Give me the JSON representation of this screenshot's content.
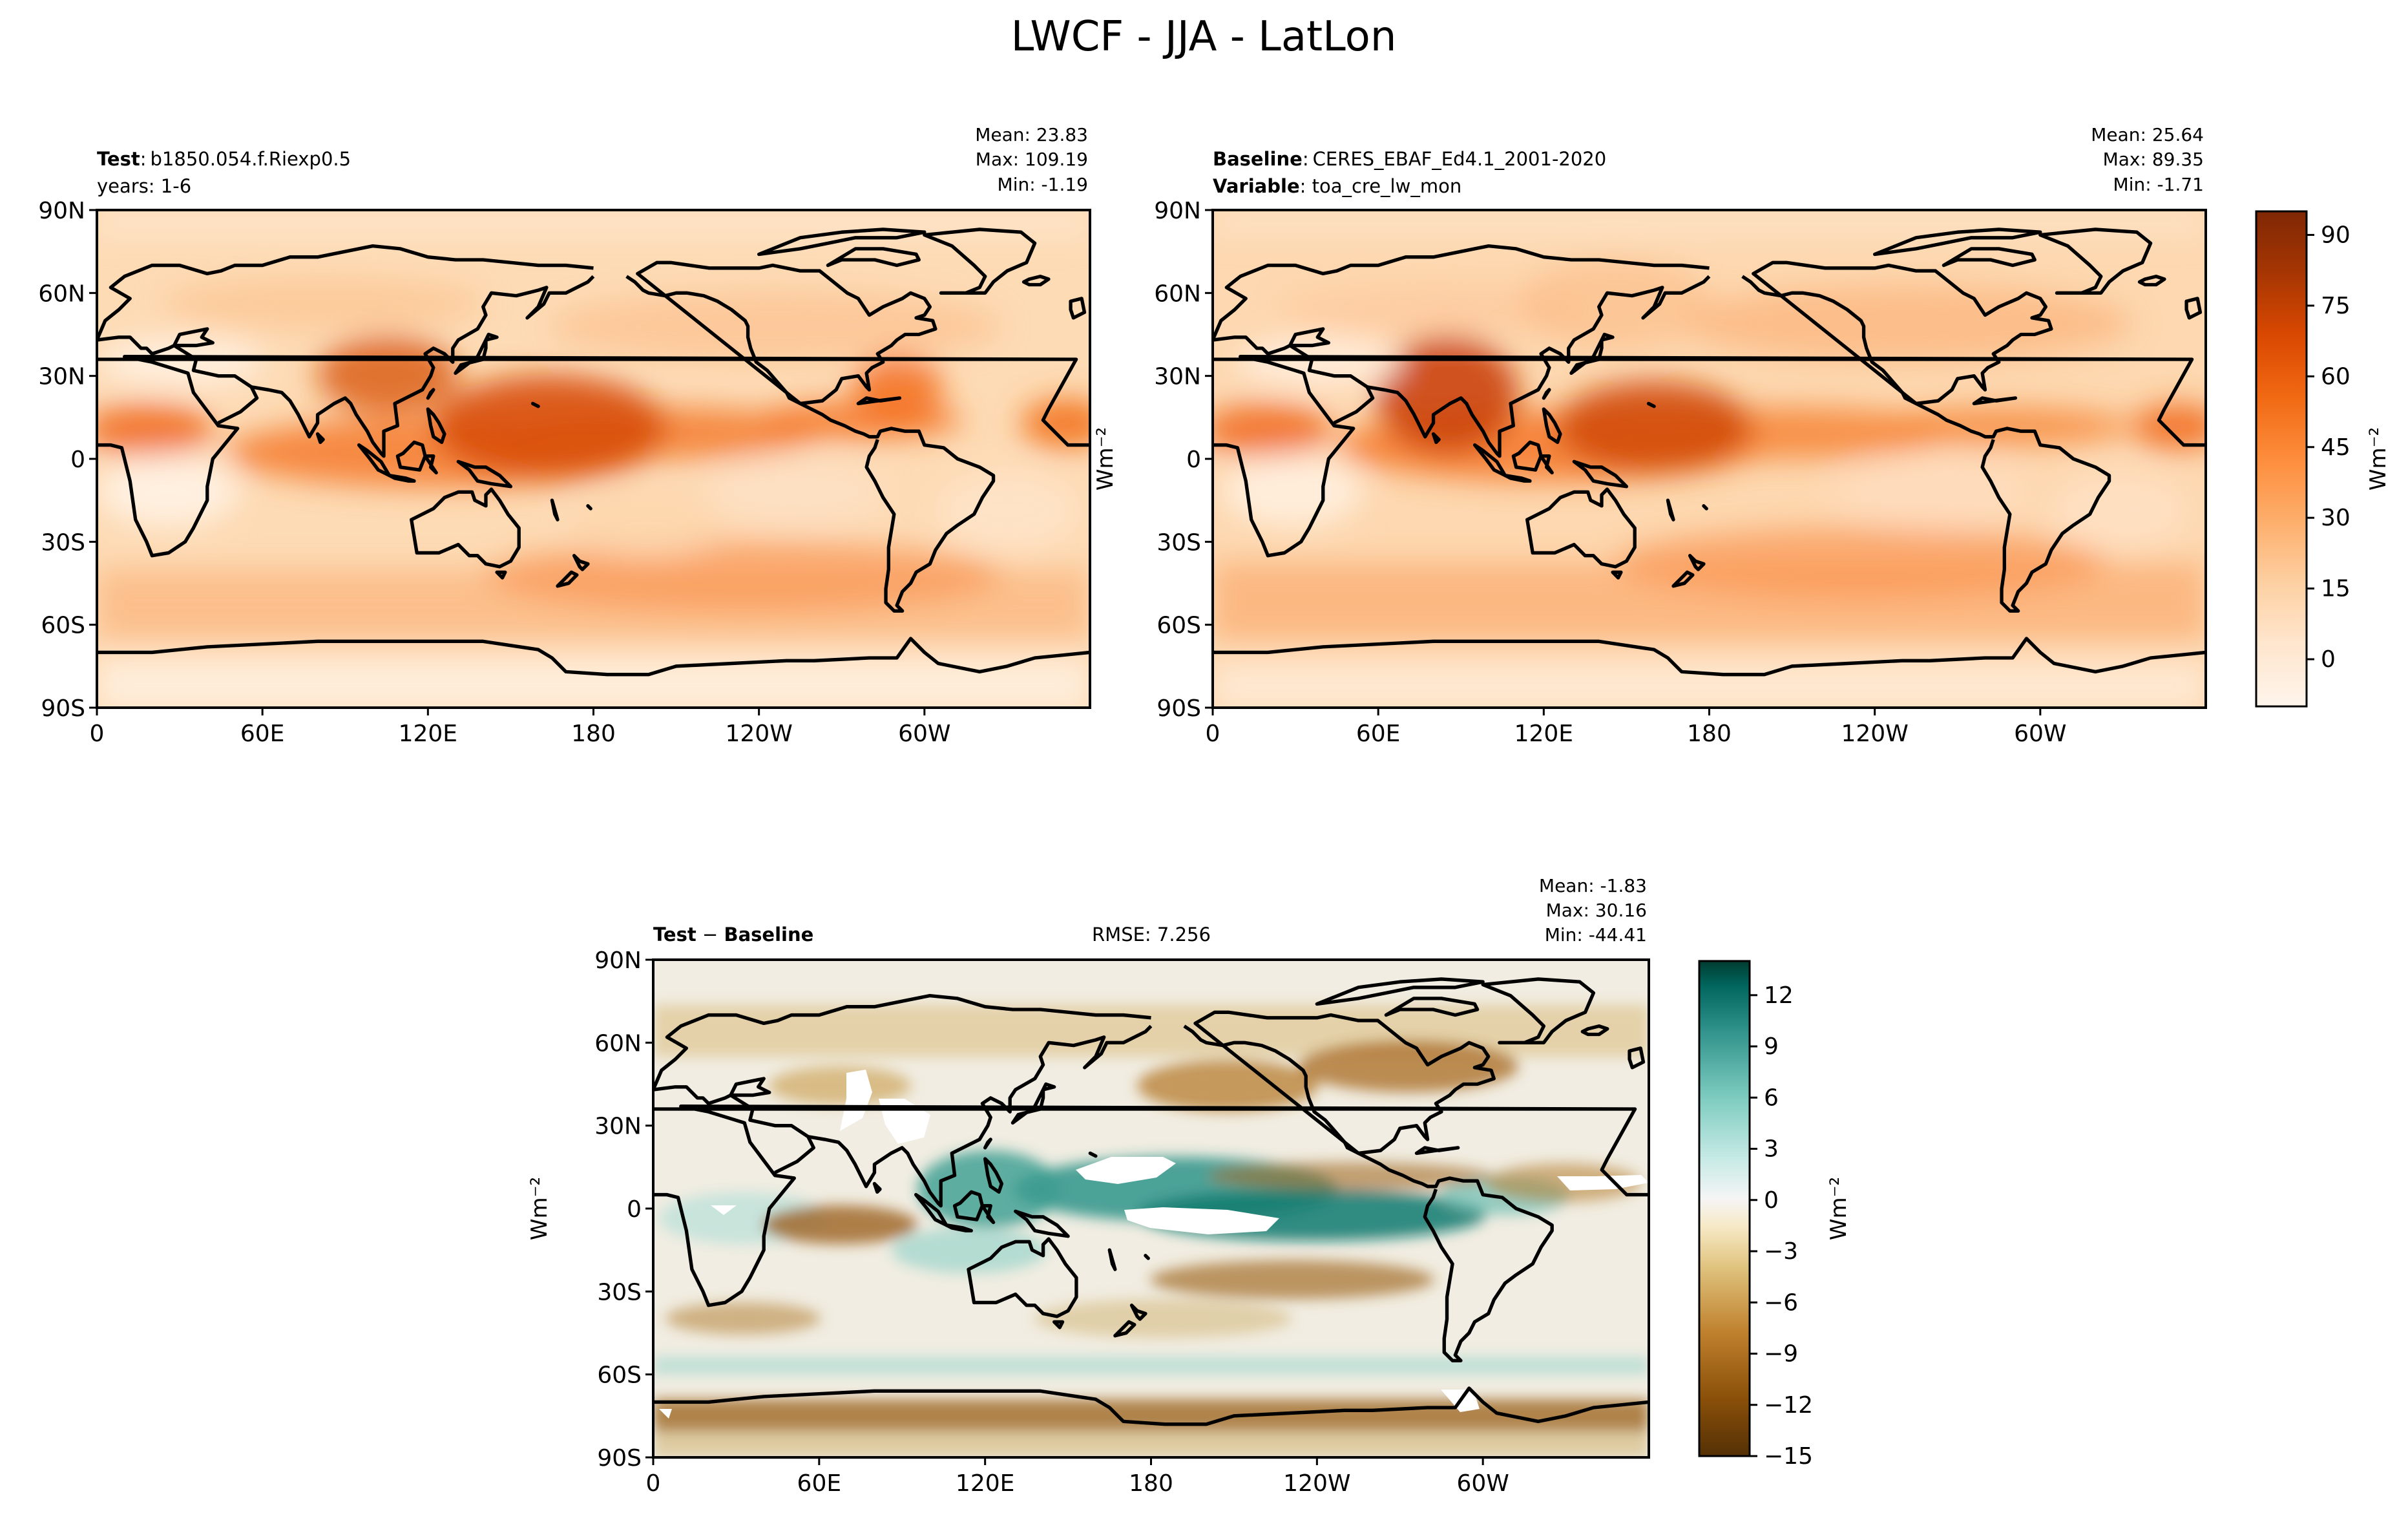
{
  "figure_title": "LWCF - JJA - LatLon",
  "chart_data": [
    {
      "type": "heatmap",
      "id": "test",
      "label_bold": "Test",
      "label_sep": ":",
      "label_text": "b1850.054.f.Riexp0.5",
      "line2_bold": "",
      "line2_text": "years: 1-6",
      "stats": {
        "mean": "Mean: 23.83",
        "max": "Max: 109.19",
        "min": "Min: -1.19"
      },
      "xticks": [
        "0",
        "60E",
        "120E",
        "180",
        "120W",
        "60W"
      ],
      "yticks": [
        "90N",
        "60N",
        "30N",
        "0",
        "30S",
        "60S",
        "90S"
      ],
      "x_values": [
        0,
        60,
        120,
        180,
        240,
        300
      ],
      "xlim": [
        0,
        360
      ],
      "ylim": [
        -90,
        90
      ],
      "units": "Wm⁻²",
      "colormap": "Oranges"
    },
    {
      "type": "heatmap",
      "id": "base",
      "label_bold": "Baseline",
      "label_sep": ":",
      "label_text": "CERES_EBAF_Ed4.1_2001-2020",
      "line2_bold": "Variable",
      "line2_text": ": toa_cre_lw_mon",
      "stats": {
        "mean": "Mean: 25.64",
        "max": "Max: 89.35",
        "min": "Min: -1.71"
      },
      "xticks": [
        "0",
        "60E",
        "120E",
        "180",
        "120W",
        "60W"
      ],
      "yticks": [
        "90N",
        "60N",
        "30N",
        "0",
        "30S",
        "60S",
        "90S"
      ],
      "x_values": [
        0,
        60,
        120,
        180,
        240,
        300
      ],
      "xlim": [
        0,
        360
      ],
      "ylim": [
        -90,
        90
      ],
      "units": "Wm⁻²",
      "colormap": "Oranges",
      "colorbar": {
        "ticks": [
          "90",
          "75",
          "60",
          "45",
          "30",
          "15",
          "0"
        ],
        "values": [
          90,
          75,
          60,
          45,
          30,
          15,
          0
        ],
        "range": [
          -10,
          95
        ],
        "label": "Wm⁻²"
      }
    },
    {
      "type": "heatmap",
      "id": "diff",
      "label_bold": "Test",
      "label_sep": " − ",
      "label_bold2": "Baseline",
      "rmse": "RMSE: 7.256",
      "stats": {
        "mean": "Mean: -1.83",
        "max": "Max: 30.16",
        "min": "Min: -44.41"
      },
      "xticks": [
        "0",
        "60E",
        "120E",
        "180",
        "120W",
        "60W"
      ],
      "yticks": [
        "90N",
        "60N",
        "30N",
        "0",
        "30S",
        "60S",
        "90S"
      ],
      "x_values": [
        0,
        60,
        120,
        180,
        240,
        300
      ],
      "xlim": [
        0,
        360
      ],
      "ylim": [
        -90,
        90
      ],
      "units": "Wm⁻²",
      "colormap": "BrBG",
      "colorbar": {
        "ticks": [
          "12",
          "9",
          "6",
          "3",
          "0",
          "−3",
          "−6",
          "−9",
          "−12",
          "−15"
        ],
        "values": [
          12,
          9,
          6,
          3,
          0,
          -3,
          -6,
          -9,
          -12,
          -15
        ],
        "range": [
          -15,
          14
        ],
        "label": "Wm⁻²"
      }
    }
  ],
  "colors": {
    "oranges": [
      "#fff5eb",
      "#fee6ce",
      "#fdd0a2",
      "#fdae6b",
      "#fd8d3c",
      "#f16913",
      "#d94801",
      "#a63603",
      "#7f2704"
    ],
    "brbg_neg": [
      "#543005",
      "#8c510a",
      "#bf812d",
      "#dfc27d",
      "#f6e8c3",
      "#f5f5f5"
    ],
    "brbg_pos": [
      "#f5f5f5",
      "#c7eae5",
      "#80cdc1",
      "#35978f",
      "#01665e",
      "#003c30"
    ],
    "coast": "#000000"
  }
}
